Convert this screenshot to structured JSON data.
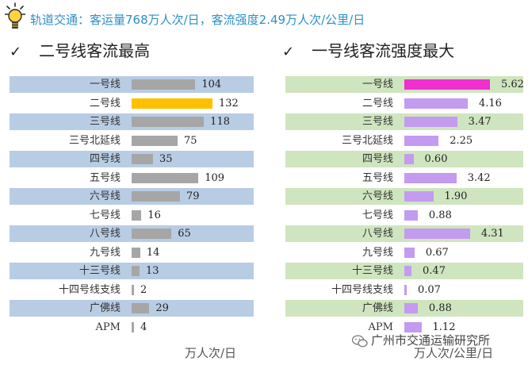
{
  "header": {
    "headline": "轨道交通：客运量768万人次/日，客流强度2.49万人次/公里/日",
    "icon": "lightbulb-icon"
  },
  "footer": {
    "source": "广州市交通运输研究所",
    "source_icon": "wechat-icon"
  },
  "chart_data": [
    {
      "type": "bar",
      "orientation": "horizontal",
      "title": "二号线客流最高",
      "unit": "万人次/日",
      "categories": [
        "一号线",
        "二号线",
        "三号线",
        "三号北延线",
        "四号线",
        "五号线",
        "六号线",
        "七号线",
        "八号线",
        "九号线",
        "十三号线",
        "十四号线支线",
        "广佛线",
        "APM"
      ],
      "values": [
        104,
        132,
        118,
        75,
        35,
        109,
        79,
        16,
        65,
        14,
        13,
        2,
        29,
        4
      ],
      "value_labels": [
        "104",
        "132",
        "118",
        "75",
        "35",
        "109",
        "79",
        "16",
        "65",
        "14",
        "13",
        "2",
        "29",
        "4"
      ],
      "xlim": [
        0,
        132
      ],
      "bar_color": "#a6a6a6",
      "highlight_color": "#ffc000",
      "highlight_index": 1,
      "row_band_color": "#b8cce4"
    },
    {
      "type": "bar",
      "orientation": "horizontal",
      "title": "一号线客流强度最大",
      "unit": "万人次/公里/日",
      "categories": [
        "一号线",
        "二号线",
        "三号线",
        "三号北延线",
        "四号线",
        "五号线",
        "六号线",
        "七号线",
        "八号线",
        "九号线",
        "十三号线",
        "十四号线支线",
        "广佛线",
        "APM"
      ],
      "values": [
        5.62,
        4.16,
        3.47,
        2.25,
        0.6,
        3.42,
        1.9,
        0.88,
        4.31,
        0.67,
        0.47,
        0.07,
        0.88,
        1.12
      ],
      "value_labels": [
        "5.62",
        "4.16",
        "3.47",
        "2.25",
        "0.60",
        "3.42",
        "1.90",
        "0.88",
        "4.31",
        "0.67",
        "0.47",
        "0.07",
        "0.88",
        "1.12"
      ],
      "xlim": [
        0,
        5.62
      ],
      "bar_color": "#c39bef",
      "highlight_color": "#ef2fd0",
      "highlight_index": 0,
      "row_band_color": "#cfe5bf"
    }
  ]
}
